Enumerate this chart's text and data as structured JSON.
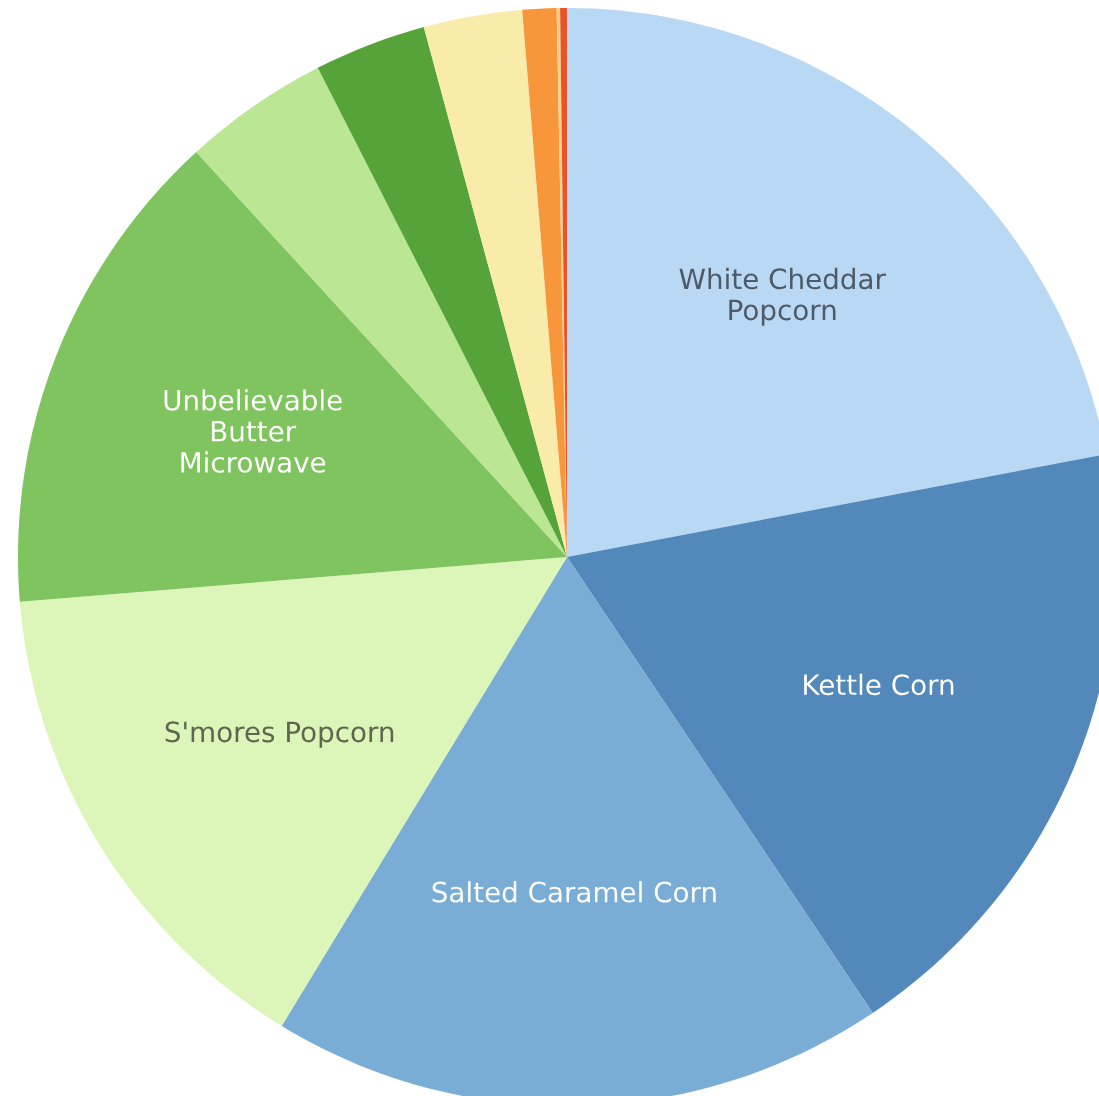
{
  "chart_data": {
    "type": "pie",
    "categories": [
      "White Cheddar\nPopcorn",
      "Kettle Corn",
      "Salted Caramel Corn",
      "S'mores Popcorn",
      "Unbelievable\nButter\nMicrowave",
      null,
      null,
      null,
      null,
      null,
      null
    ],
    "values": [
      22.0,
      18.6,
      18.1,
      15.0,
      14.5,
      4.3,
      3.3,
      2.9,
      1.0,
      0.1,
      0.2
    ],
    "colors": [
      "#b9d8f3",
      "#5288ba",
      "#79add6",
      "#dcf5b9",
      "#7fc45e",
      "#bbe694",
      "#56a33a",
      "#f9ecaa",
      "#f7963b",
      "#fcd08a",
      "#e8542a"
    ],
    "legend": false
  }
}
